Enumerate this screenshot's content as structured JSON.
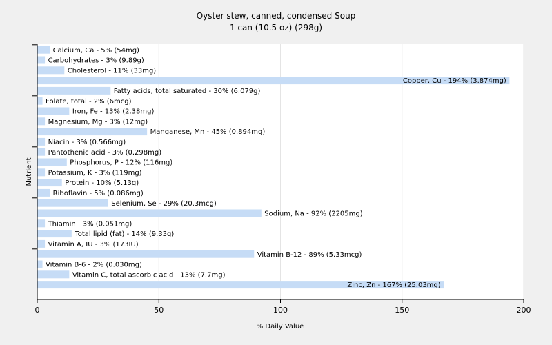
{
  "chart_data": {
    "type": "bar",
    "orientation": "horizontal",
    "title": "Oyster stew, canned, condensed Soup",
    "subtitle": "1 can (10.5 oz) (298g)",
    "xlabel": "% Daily Value",
    "ylabel": "Nutrient",
    "xlim": [
      0,
      200
    ],
    "xticks": [
      "0",
      "50",
      "100",
      "150",
      "200"
    ],
    "grid": "vertical",
    "bar_color": "#c6dcf6",
    "categories": [
      "Calcium, Ca",
      "Carbohydrates",
      "Cholesterol",
      "Copper, Cu",
      "Fatty acids, total saturated",
      "Folate, total",
      "Iron, Fe",
      "Magnesium, Mg",
      "Manganese, Mn",
      "Niacin",
      "Pantothenic acid",
      "Phosphorus, P",
      "Potassium, K",
      "Protein",
      "Riboflavin",
      "Selenium, Se",
      "Sodium, Na",
      "Thiamin",
      "Total lipid (fat)",
      "Vitamin A, IU",
      "Vitamin B-12",
      "Vitamin B-6",
      "Vitamin C, total ascorbic acid",
      "Zinc, Zn"
    ],
    "values": [
      5,
      3,
      11,
      194,
      30,
      2,
      13,
      3,
      45,
      3,
      3,
      12,
      3,
      10,
      5,
      29,
      92,
      3,
      14,
      3,
      89,
      2,
      13,
      167
    ],
    "labels": [
      "Calcium, Ca - 5% (54mg)",
      "Carbohydrates - 3% (9.89g)",
      "Cholesterol - 11% (33mg)",
      "Copper, Cu - 194% (3.874mg)",
      "Fatty acids, total saturated - 30% (6.079g)",
      "Folate, total - 2% (6mcg)",
      "Iron, Fe - 13% (2.38mg)",
      "Magnesium, Mg - 3% (12mg)",
      "Manganese, Mn - 45% (0.894mg)",
      "Niacin - 3% (0.566mg)",
      "Pantothenic acid - 3% (0.298mg)",
      "Phosphorus, P - 12% (116mg)",
      "Potassium, K - 3% (119mg)",
      "Protein - 10% (5.13g)",
      "Riboflavin - 5% (0.086mg)",
      "Selenium, Se - 29% (20.3mcg)",
      "Sodium, Na - 92% (2205mg)",
      "Thiamin - 3% (0.051mg)",
      "Total lipid (fat) - 14% (9.33g)",
      "Vitamin A, IU - 3% (173IU)",
      "Vitamin B-12 - 89% (5.33mcg)",
      "Vitamin B-6 - 2% (0.030mg)",
      "Vitamin C, total ascorbic acid - 13% (7.7mg)",
      "Zinc, Zn - 167% (25.03mg)"
    ]
  }
}
